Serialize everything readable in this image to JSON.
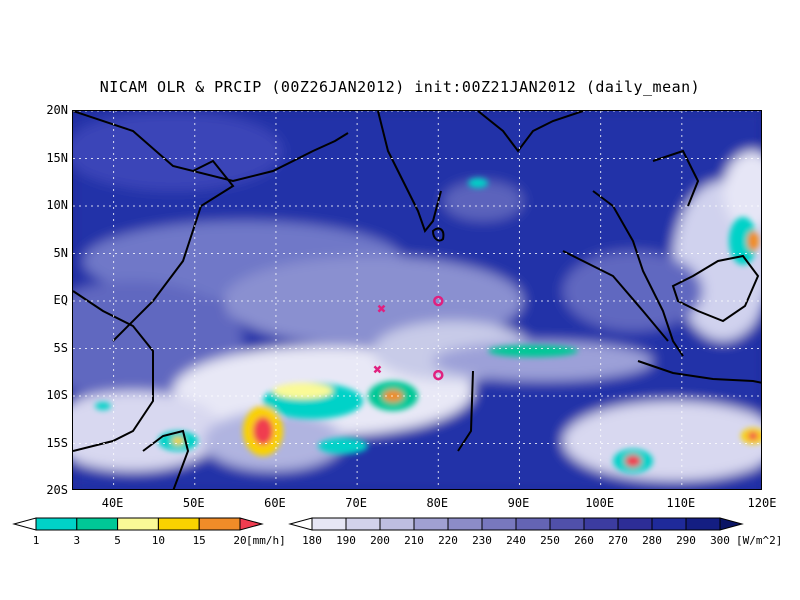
{
  "title": "NICAM OLR & PRCIP (00Z26JAN2012) init:00Z21JAN2012 (daily_mean)",
  "lat_labels": [
    "20N",
    "15N",
    "10N",
    "5N",
    "EQ",
    "5S",
    "10S",
    "15S",
    "20S"
  ],
  "lon_labels": [
    "40E",
    "50E",
    "60E",
    "70E",
    "80E",
    "90E",
    "100E",
    "110E",
    "120E"
  ],
  "precip_colorbar": {
    "labels": [
      "1",
      "3",
      "5",
      "10",
      "15",
      "20"
    ],
    "unit": "[mm/h]",
    "colors": [
      "#00d2c8",
      "#00c896",
      "#fafa96",
      "#fad200",
      "#f08c28",
      "#f03c50"
    ]
  },
  "olr_colorbar": {
    "labels": [
      "180",
      "190",
      "200",
      "210",
      "220",
      "230",
      "240",
      "250",
      "260",
      "270",
      "280",
      "290",
      "300"
    ],
    "unit": "[W/m^2]",
    "colors": [
      "#ffffff",
      "#e6e6f5",
      "#d2d2eb",
      "#bebee1",
      "#a0a0d2",
      "#8c8cc8",
      "#7878be",
      "#6464b4",
      "#5050aa",
      "#3c3ca0",
      "#2d2d96",
      "#1f2a9a",
      "#141e82",
      "#0a1464"
    ]
  },
  "markers": [
    {
      "symbol": "x",
      "lon": 73,
      "lat": -0.8,
      "color": "#e0207f"
    },
    {
      "symbol": "o",
      "lon": 80,
      "lat": 0.0,
      "color": "#e0207f"
    },
    {
      "symbol": "x",
      "lon": 72.5,
      "lat": -7.2,
      "color": "#e0207f"
    },
    {
      "symbol": "o",
      "lon": 80,
      "lat": -7.8,
      "color": "#e0207f"
    }
  ],
  "map_extent": {
    "lon": [
      35,
      120
    ],
    "lat": [
      -20,
      20
    ]
  }
}
